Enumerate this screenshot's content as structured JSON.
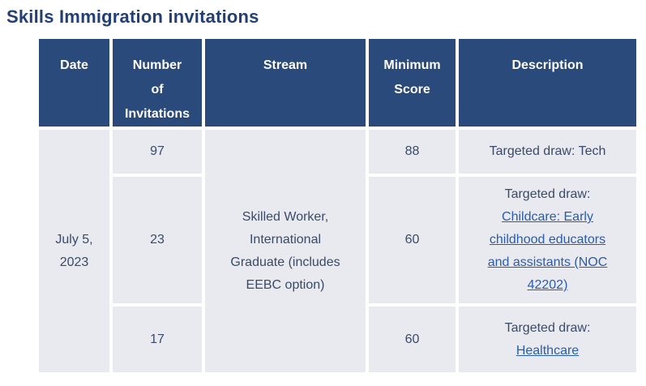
{
  "page": {
    "title": "Skills Immigration invitations"
  },
  "table": {
    "headers": [
      "Date",
      "Number\nof\nInvitations",
      "Stream",
      "Minimum\nScore",
      "Description"
    ],
    "date": "July 5, 2023",
    "stream": "Skilled Worker, International Graduate (includes EEBC option)",
    "rows": [
      {
        "invitations": "97",
        "min_score": "88",
        "description": "Targeted draw: Tech",
        "link": null
      },
      {
        "invitations": "23",
        "min_score": "60",
        "description": "Targeted draw:",
        "link": "Childcare: Early childhood educators and assistants (NOC 42202)"
      },
      {
        "invitations": "17",
        "min_score": "60",
        "description": "Targeted draw:",
        "link": "Healthcare"
      }
    ]
  },
  "colors": {
    "header_bg": "#2a4a7c",
    "cell_bg": "#e9eaef",
    "title": "#234075",
    "text": "#3b4a68",
    "link": "#2b5caa",
    "header_text": "#ffffff"
  }
}
